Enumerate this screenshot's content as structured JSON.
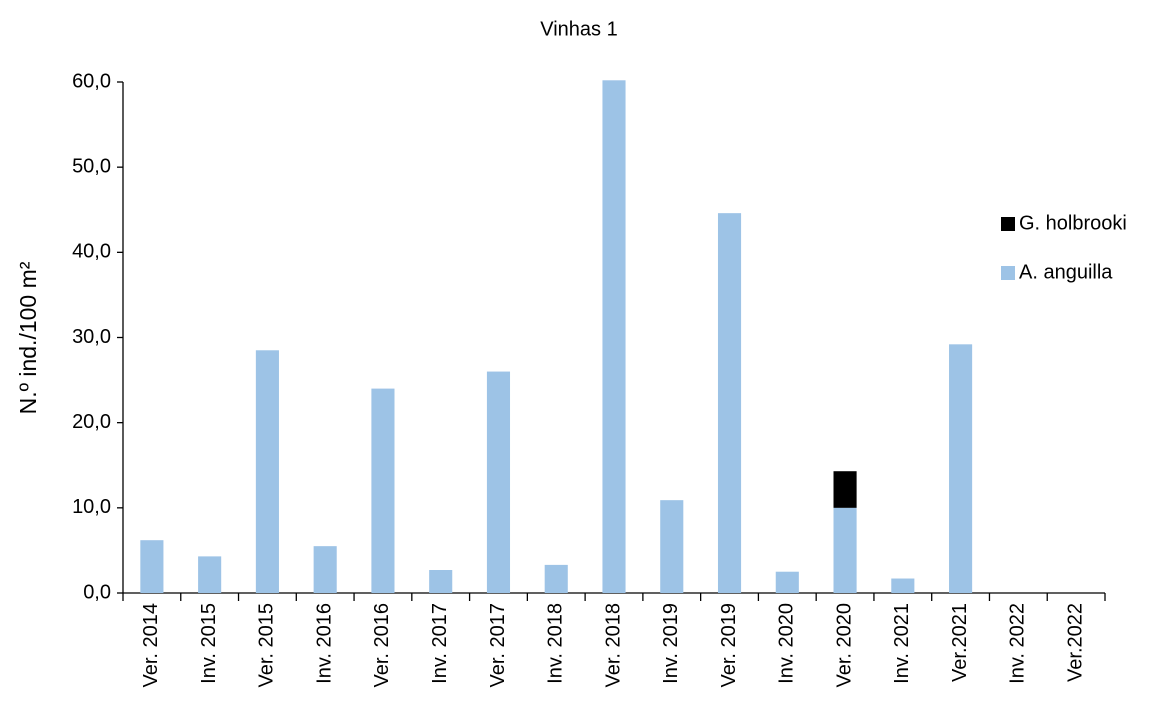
{
  "chart_data": {
    "type": "bar",
    "stacked": true,
    "title": "Vinhas 1",
    "y_label": "N.º ind./100 m²",
    "categories": [
      "Ver. 2014",
      "Inv. 2015",
      "Ver. 2015",
      "Inv. 2016",
      "Ver. 2016",
      "Inv. 2017",
      "Ver. 2017",
      "Inv. 2018",
      "Ver. 2018",
      "Inv. 2019",
      "Ver. 2019",
      "Inv. 2020",
      "Ver. 2020",
      "Inv. 2021",
      "Ver.2021",
      "Inv. 2022",
      "Ver.2022"
    ],
    "series": [
      {
        "name": "A. anguilla",
        "color": "#9dc3e6",
        "values": [
          6.2,
          4.3,
          28.5,
          5.5,
          24.0,
          2.7,
          26.0,
          3.3,
          60.2,
          10.9,
          44.6,
          2.5,
          10.0,
          1.7,
          29.2,
          0,
          0
        ]
      },
      {
        "name": "G. holbrooki",
        "color": "#000000",
        "values": [
          0,
          0,
          0,
          0,
          0,
          0,
          0,
          0,
          0,
          0,
          0,
          0,
          4.3,
          0,
          0,
          0,
          0
        ]
      }
    ],
    "ylim": [
      0,
      60
    ],
    "yticks": [
      {
        "value": 0,
        "label": "0,0"
      },
      {
        "value": 10,
        "label": "10,0"
      },
      {
        "value": 20,
        "label": "20,0"
      },
      {
        "value": 30,
        "label": "30,0"
      },
      {
        "value": 40,
        "label": "40,0"
      },
      {
        "value": 50,
        "label": "50,0"
      },
      {
        "value": 60,
        "label": "60,0"
      }
    ],
    "grid": false,
    "legend": "right"
  }
}
